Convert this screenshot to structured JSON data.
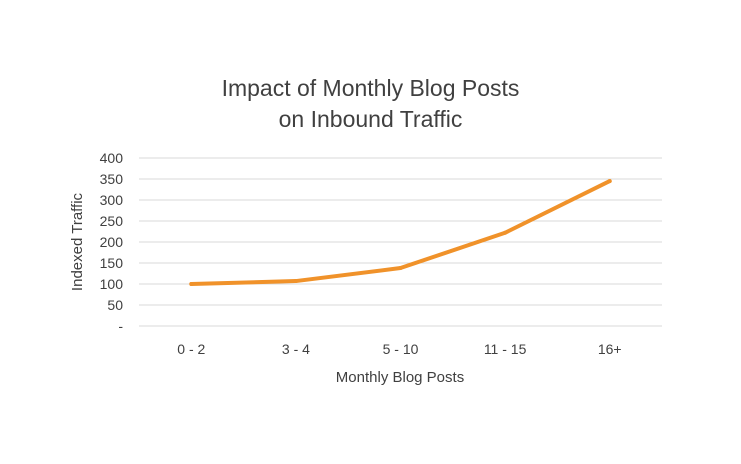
{
  "chart_data": {
    "type": "line",
    "title_lines": [
      "Impact of Monthly Blog Posts",
      "on Inbound Traffic"
    ],
    "xlabel": "Monthly Blog Posts",
    "ylabel": "Indexed Traffic",
    "categories": [
      "0 - 2",
      "3 - 4",
      "5 - 10",
      "11 - 15",
      "16+"
    ],
    "series": [
      {
        "values": [
          100,
          107,
          138,
          222,
          345
        ],
        "color": "#F0922A"
      }
    ],
    "ylim": [
      0,
      400
    ],
    "yticks": [
      0,
      50,
      100,
      150,
      200,
      250,
      300,
      350,
      400
    ],
    "ytick_labels": [
      "-",
      "50",
      "100",
      "150",
      "200",
      "250",
      "300",
      "350",
      "400"
    ],
    "grid": true,
    "legend": "none"
  }
}
